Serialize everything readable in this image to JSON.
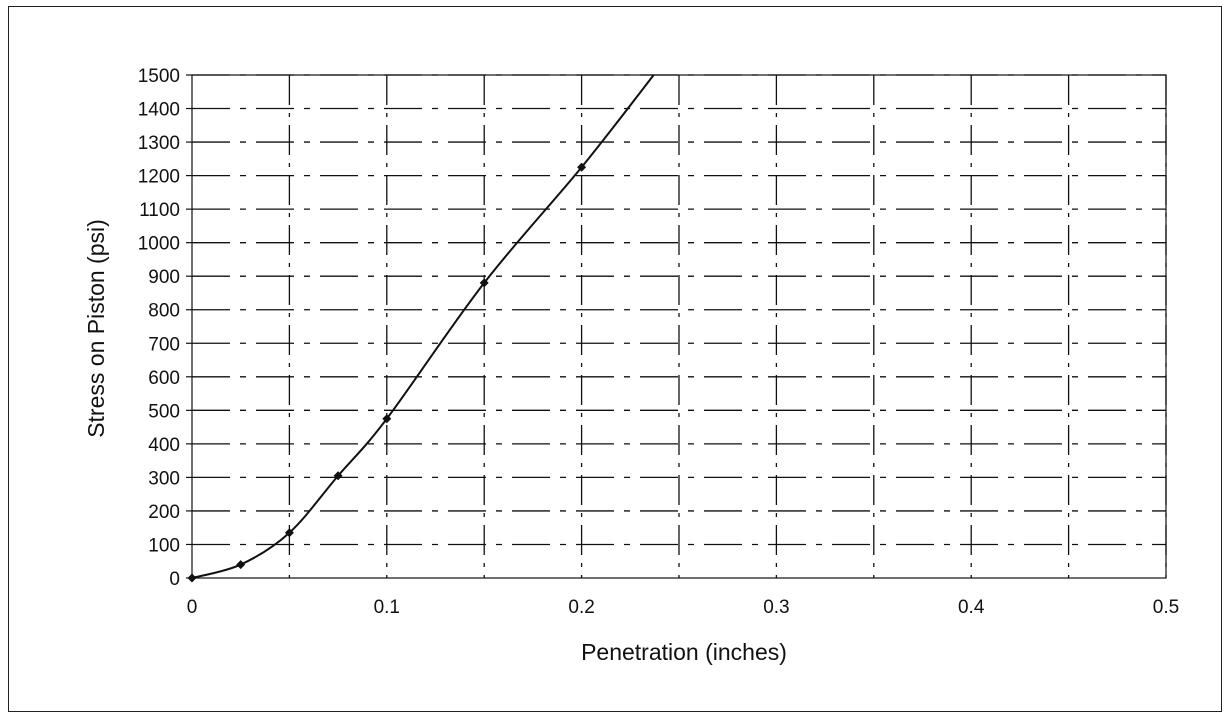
{
  "chart_data": {
    "type": "line",
    "title": "",
    "xlabel": "Penetration (inches)",
    "ylabel": "Stress on Piston (psi)",
    "xlim": [
      0,
      0.5
    ],
    "ylim": [
      0,
      1500
    ],
    "x_ticks": [
      0,
      0.1,
      0.2,
      0.3,
      0.4,
      0.5
    ],
    "x_tick_labels": [
      "0",
      "0.1",
      "0.2",
      "0.3",
      "0.4",
      "0.5"
    ],
    "y_ticks": [
      0,
      100,
      200,
      300,
      400,
      500,
      600,
      700,
      800,
      900,
      1000,
      1100,
      1200,
      1300,
      1400,
      1500
    ],
    "y_tick_labels": [
      "0",
      "100",
      "200",
      "300",
      "400",
      "500",
      "600",
      "700",
      "800",
      "900",
      "1000",
      "1100",
      "1200",
      "1300",
      "1400",
      "1500"
    ],
    "minor_x_gridlines": [
      0.05,
      0.15,
      0.25,
      0.35,
      0.45
    ],
    "grid": true,
    "legend": "none",
    "series": [
      {
        "x": [
          0,
          0.025,
          0.05,
          0.075,
          0.1,
          0.15,
          0.2
        ],
        "y": [
          0,
          40,
          135,
          305,
          475,
          880,
          1225
        ],
        "curve_extension": {
          "x": 0.237,
          "y": 1500
        },
        "color": "#111111",
        "marker": "diamond"
      }
    ]
  }
}
